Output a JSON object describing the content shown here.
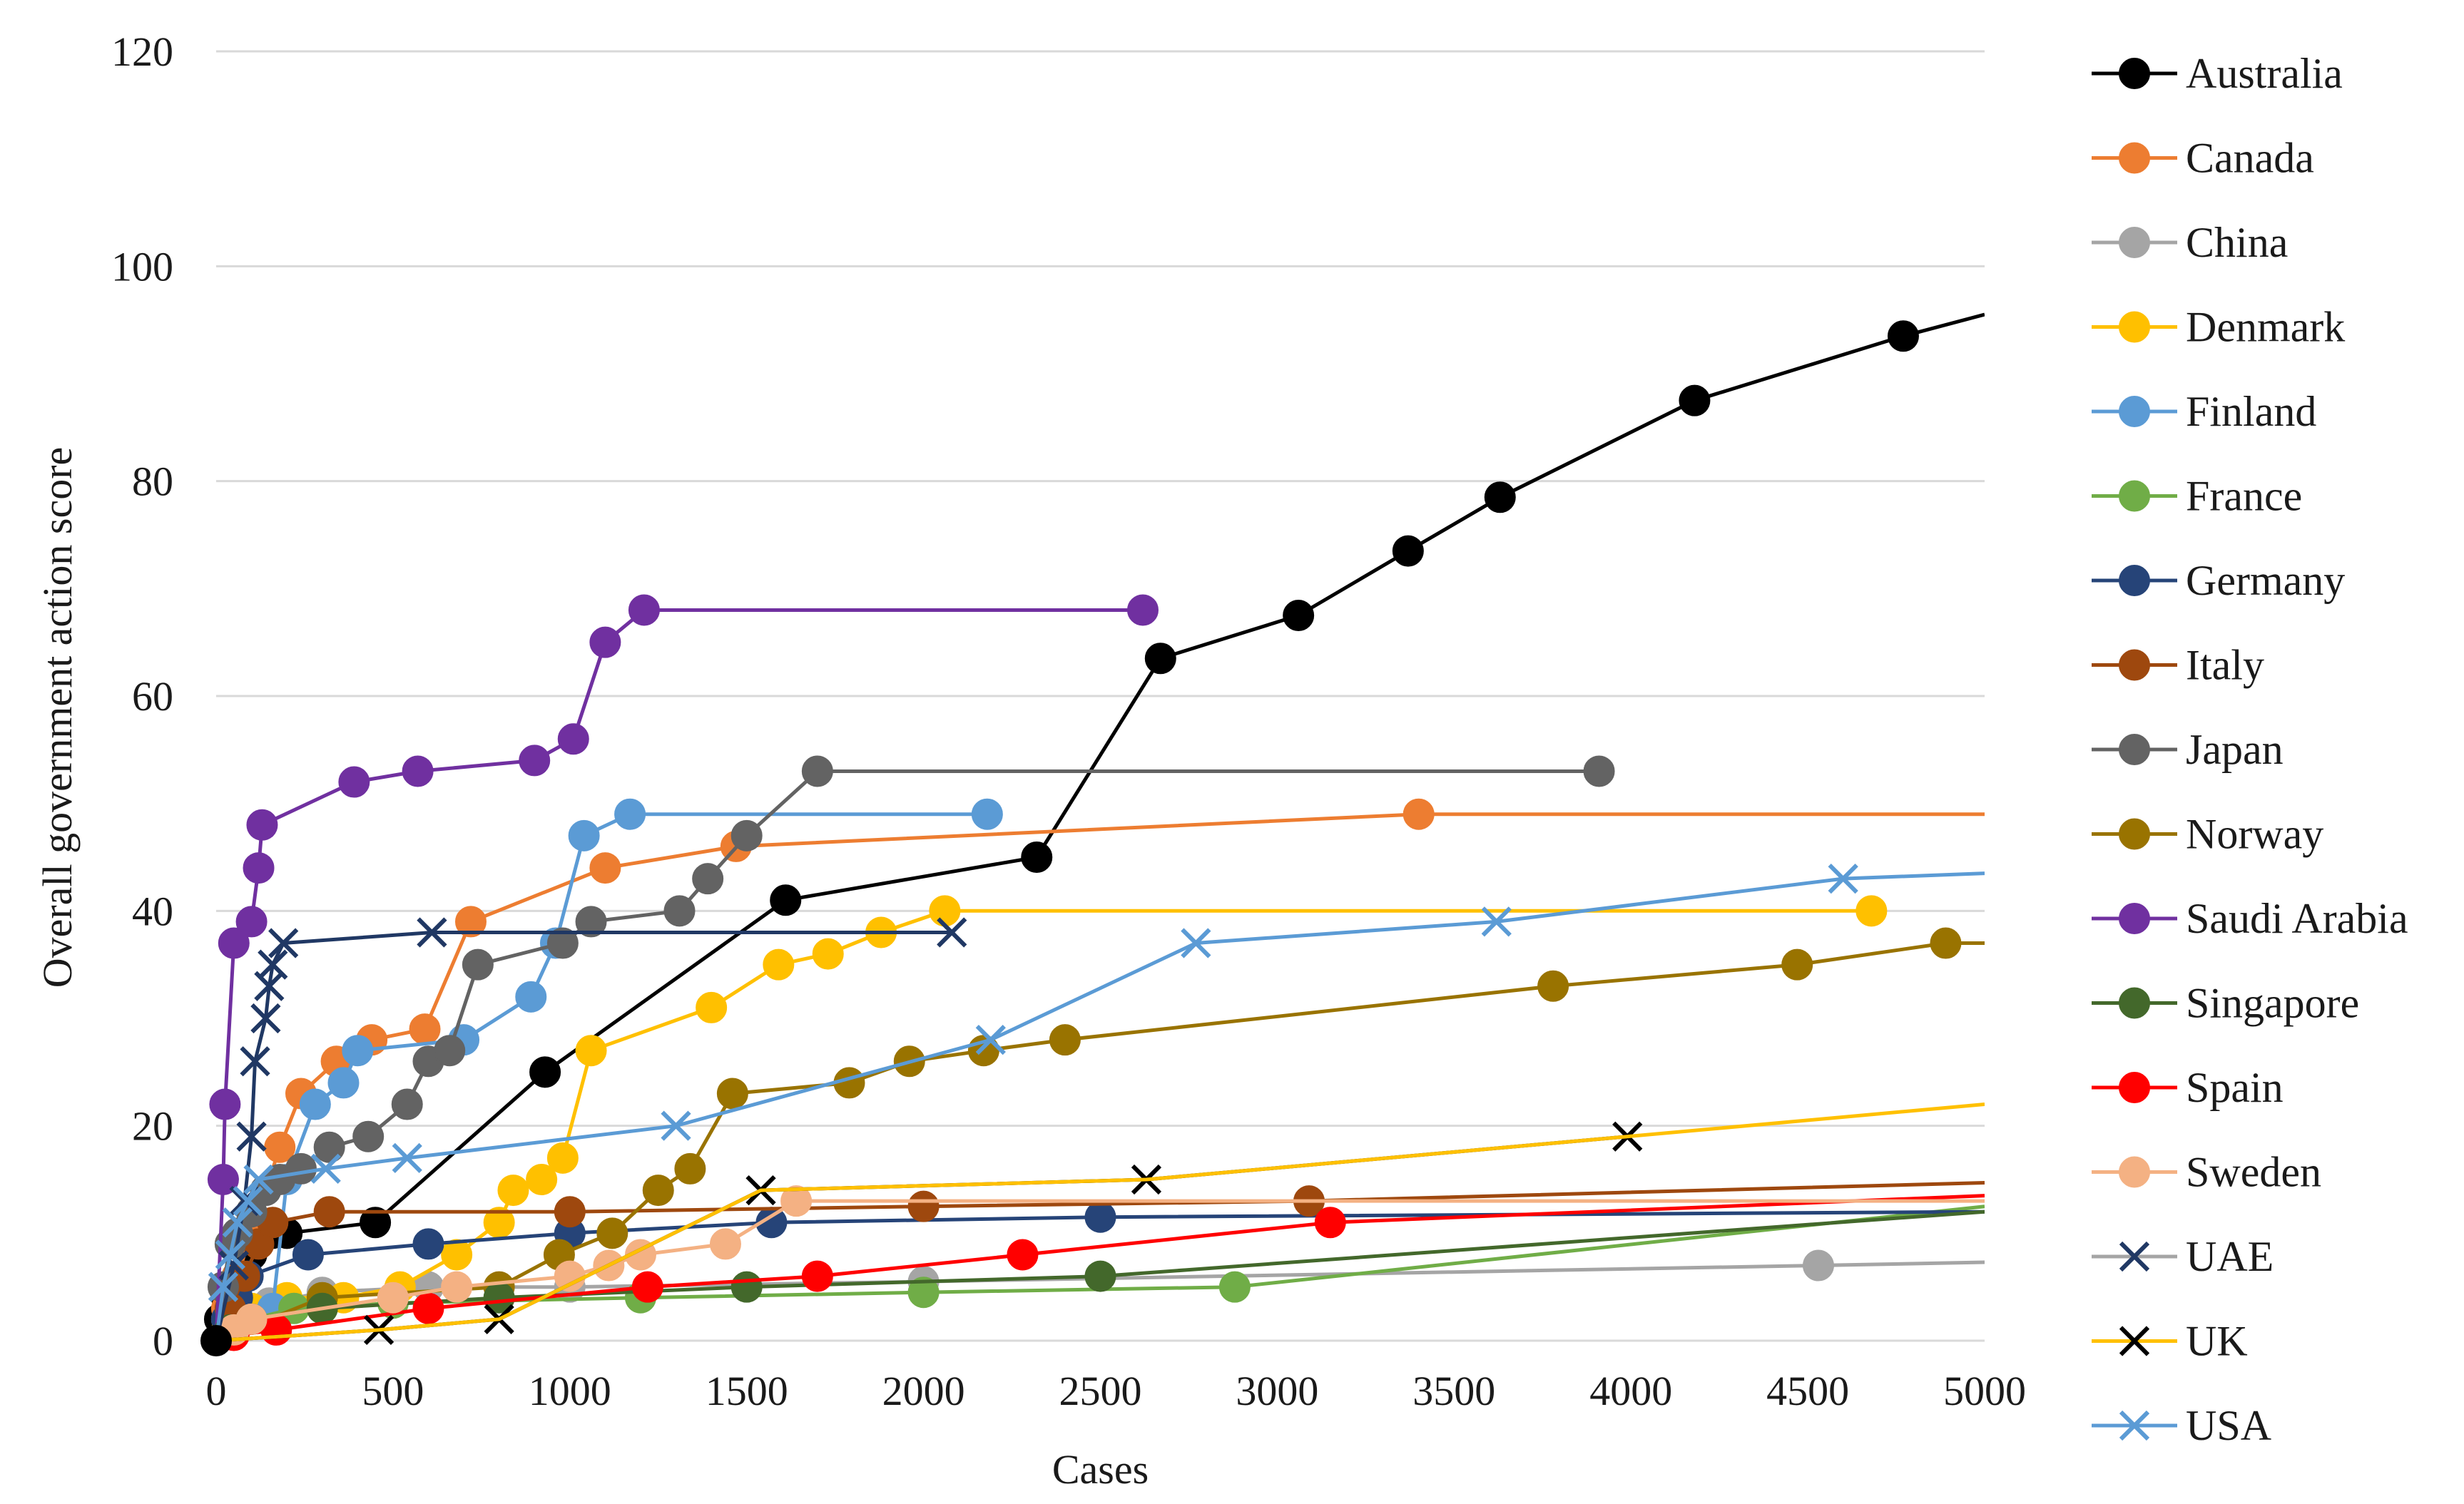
{
  "chart_data": {
    "type": "line",
    "title": "",
    "xlabel": "Cases",
    "ylabel": "Overall government action score",
    "xlim": [
      0,
      5000
    ],
    "ylim": [
      0,
      120
    ],
    "x_ticks": [
      "0",
      "500",
      "1000",
      "1500",
      "2000",
      "2500",
      "3000",
      "3500",
      "4000",
      "4500",
      "5000"
    ],
    "y_ticks": [
      "0",
      "20",
      "40",
      "60",
      "80",
      "100",
      "120"
    ],
    "grid": "horizontal",
    "legend_position": "right",
    "series": [
      {
        "name": "Australia",
        "color": "#000000",
        "marker": "circle",
        "points": [
          [
            0,
            0
          ],
          [
            10,
            2
          ],
          [
            30,
            4
          ],
          [
            60,
            6
          ],
          [
            100,
            8
          ],
          [
            160,
            10
          ],
          [
            200,
            10
          ],
          [
            450,
            11
          ],
          [
            930,
            25
          ],
          [
            1610,
            41
          ],
          [
            2320,
            45
          ],
          [
            2670,
            63.5
          ],
          [
            3060,
            67.5
          ],
          [
            3370,
            73.5
          ],
          [
            3630,
            78.5
          ],
          [
            4180,
            87.5
          ],
          [
            4770,
            93.5
          ],
          [
            5000,
            95.5
          ]
        ]
      },
      {
        "name": "Canada",
        "color": "#ED7D31",
        "marker": "circle",
        "points": [
          [
            0,
            0
          ],
          [
            30,
            3
          ],
          [
            60,
            6
          ],
          [
            100,
            10
          ],
          [
            180,
            18
          ],
          [
            240,
            23
          ],
          [
            340,
            26
          ],
          [
            440,
            28
          ],
          [
            590,
            29
          ],
          [
            720,
            39
          ],
          [
            1100,
            44
          ],
          [
            1470,
            46
          ],
          [
            3400,
            49
          ],
          [
            5000,
            49
          ]
        ]
      },
      {
        "name": "China",
        "color": "#A5A5A5",
        "marker": "circle",
        "points": [
          [
            0,
            0
          ],
          [
            30,
            2
          ],
          [
            80,
            3
          ],
          [
            150,
            3.5
          ],
          [
            300,
            4.5
          ],
          [
            600,
            5
          ],
          [
            1000,
            5
          ],
          [
            2000,
            5.5
          ],
          [
            4530,
            7
          ],
          [
            5000,
            7.3
          ]
        ]
      },
      {
        "name": "Denmark",
        "color": "#FFC000",
        "marker": "circle",
        "points": [
          [
            0,
            0
          ],
          [
            30,
            1
          ],
          [
            100,
            3
          ],
          [
            200,
            4
          ],
          [
            360,
            4
          ],
          [
            520,
            5
          ],
          [
            680,
            8
          ],
          [
            800,
            11
          ],
          [
            840,
            14
          ],
          [
            920,
            15
          ],
          [
            980,
            17
          ],
          [
            1060,
            27
          ],
          [
            1400,
            31
          ],
          [
            1590,
            35
          ],
          [
            1730,
            36
          ],
          [
            1880,
            38
          ],
          [
            2060,
            40
          ],
          [
            4680,
            40
          ]
        ]
      },
      {
        "name": "Finland",
        "color": "#5B9BD5",
        "marker": "circle",
        "points": [
          [
            0,
            0
          ],
          [
            50,
            2
          ],
          [
            100,
            2
          ],
          [
            160,
            3
          ],
          [
            200,
            15
          ],
          [
            280,
            22
          ],
          [
            360,
            24
          ],
          [
            400,
            27
          ],
          [
            700,
            28
          ],
          [
            890,
            32
          ],
          [
            960,
            37
          ],
          [
            1040,
            47
          ],
          [
            1170,
            49
          ],
          [
            2180,
            49
          ]
        ]
      },
      {
        "name": "France",
        "color": "#70AD47",
        "marker": "circle",
        "points": [
          [
            0,
            0
          ],
          [
            50,
            1
          ],
          [
            100,
            2
          ],
          [
            220,
            3
          ],
          [
            500,
            3.5
          ],
          [
            1200,
            4
          ],
          [
            2000,
            4.5
          ],
          [
            2880,
            5
          ],
          [
            5000,
            12.5
          ]
        ]
      },
      {
        "name": "Germany",
        "color": "#264478",
        "marker": "circle",
        "points": [
          [
            0,
            0
          ],
          [
            30,
            2
          ],
          [
            60,
            4
          ],
          [
            90,
            6
          ],
          [
            260,
            8
          ],
          [
            600,
            9
          ],
          [
            1000,
            10
          ],
          [
            1570,
            11
          ],
          [
            2500,
            11.5
          ],
          [
            5000,
            12
          ]
        ]
      },
      {
        "name": "Italy",
        "color": "#9E480E",
        "marker": "circle",
        "points": [
          [
            0,
            0
          ],
          [
            40,
            3
          ],
          [
            80,
            6
          ],
          [
            120,
            9
          ],
          [
            160,
            11
          ],
          [
            320,
            12
          ],
          [
            1000,
            12
          ],
          [
            2000,
            12.5
          ],
          [
            3090,
            13
          ],
          [
            5000,
            14.7
          ]
        ]
      },
      {
        "name": "Japan",
        "color": "#636363",
        "marker": "circle",
        "points": [
          [
            0,
            0
          ],
          [
            20,
            5
          ],
          [
            40,
            9
          ],
          [
            60,
            10
          ],
          [
            100,
            12
          ],
          [
            140,
            14
          ],
          [
            180,
            15
          ],
          [
            240,
            16
          ],
          [
            320,
            18
          ],
          [
            430,
            19
          ],
          [
            540,
            22
          ],
          [
            600,
            26
          ],
          [
            660,
            27
          ],
          [
            740,
            35
          ],
          [
            980,
            37
          ],
          [
            1060,
            39
          ],
          [
            1310,
            40
          ],
          [
            1390,
            43
          ],
          [
            1500,
            47
          ],
          [
            1700,
            53
          ],
          [
            3910,
            53
          ]
        ]
      },
      {
        "name": "Norway",
        "color": "#997300",
        "marker": "circle",
        "points": [
          [
            0,
            0
          ],
          [
            300,
            4
          ],
          [
            800,
            5
          ],
          [
            970,
            8
          ],
          [
            1120,
            10
          ],
          [
            1250,
            14
          ],
          [
            1340,
            16
          ],
          [
            1460,
            23
          ],
          [
            1790,
            24
          ],
          [
            1960,
            26
          ],
          [
            2170,
            27
          ],
          [
            2400,
            28
          ],
          [
            3780,
            33
          ],
          [
            4470,
            35
          ],
          [
            4890,
            37
          ],
          [
            5000,
            37
          ]
        ]
      },
      {
        "name": "Saudi Arabia",
        "color": "#7030A0",
        "marker": "circle",
        "points": [
          [
            0,
            0
          ],
          [
            20,
            15
          ],
          [
            25,
            22
          ],
          [
            50,
            37
          ],
          [
            100,
            39
          ],
          [
            120,
            44
          ],
          [
            130,
            48
          ],
          [
            390,
            52
          ],
          [
            570,
            53
          ],
          [
            900,
            54
          ],
          [
            1010,
            56
          ],
          [
            1100,
            65
          ],
          [
            1210,
            68
          ],
          [
            2620,
            68
          ]
        ]
      },
      {
        "name": "Singapore",
        "color": "#43682B",
        "marker": "circle",
        "points": [
          [
            0,
            0
          ],
          [
            40,
            1
          ],
          [
            100,
            2
          ],
          [
            300,
            3
          ],
          [
            800,
            4
          ],
          [
            1500,
            5
          ],
          [
            2500,
            6
          ],
          [
            5000,
            12
          ]
        ]
      },
      {
        "name": "Spain",
        "color": "#FF0000",
        "marker": "circle",
        "points": [
          [
            0,
            0
          ],
          [
            50,
            0.5
          ],
          [
            170,
            1
          ],
          [
            600,
            3
          ],
          [
            1220,
            5
          ],
          [
            1700,
            6
          ],
          [
            2280,
            8
          ],
          [
            3150,
            11
          ],
          [
            5000,
            13.5
          ]
        ]
      },
      {
        "name": "Sweden",
        "color": "#F4B183",
        "marker": "circle",
        "points": [
          [
            0,
            0
          ],
          [
            50,
            1
          ],
          [
            100,
            2
          ],
          [
            500,
            4
          ],
          [
            680,
            5
          ],
          [
            1000,
            6
          ],
          [
            1110,
            7
          ],
          [
            1200,
            8
          ],
          [
            1440,
            9
          ],
          [
            1640,
            13
          ],
          [
            5000,
            13
          ]
        ]
      },
      {
        "name": "UAE",
        "color": "#203864",
        "marker": "x",
        "points": [
          [
            0,
            0
          ],
          [
            50,
            7
          ],
          [
            80,
            13
          ],
          [
            100,
            19
          ],
          [
            110,
            26
          ],
          [
            140,
            30
          ],
          [
            150,
            33
          ],
          [
            160,
            35
          ],
          [
            190,
            37
          ],
          [
            610,
            38
          ],
          [
            2080,
            38
          ]
        ]
      },
      {
        "name": "UK",
        "color": "#000000",
        "marker": "x",
        "points": [
          [
            0,
            0
          ],
          [
            460,
            1
          ],
          [
            800,
            2
          ],
          [
            1540,
            14
          ],
          [
            2630,
            15
          ],
          [
            3990,
            19
          ]
        ]
      },
      {
        "name": "UK",
        "color": "#FFC000",
        "marker": "none",
        "points": [
          [
            0,
            0
          ],
          [
            460,
            1
          ],
          [
            800,
            2
          ],
          [
            1540,
            14
          ],
          [
            2630,
            15
          ],
          [
            3990,
            19
          ],
          [
            5000,
            22
          ]
        ]
      },
      {
        "name": "USA",
        "color": "#5B9BD5",
        "marker": "x",
        "points": [
          [
            0,
            0
          ],
          [
            20,
            5
          ],
          [
            40,
            8
          ],
          [
            60,
            11
          ],
          [
            90,
            13
          ],
          [
            120,
            15
          ],
          [
            310,
            16
          ],
          [
            540,
            17
          ],
          [
            1300,
            20
          ],
          [
            2190,
            28
          ],
          [
            2770,
            37
          ],
          [
            3620,
            39
          ],
          [
            4600,
            43
          ],
          [
            5000,
            43.5
          ]
        ]
      }
    ],
    "legend": [
      {
        "label": "Australia",
        "color": "#000000",
        "marker": "circle",
        "line": "#000000"
      },
      {
        "label": "Canada",
        "color": "#ED7D31",
        "marker": "circle",
        "line": "#ED7D31"
      },
      {
        "label": "China",
        "color": "#A5A5A5",
        "marker": "circle",
        "line": "#A5A5A5"
      },
      {
        "label": "Denmark",
        "color": "#FFC000",
        "marker": "circle",
        "line": "#FFC000"
      },
      {
        "label": "Finland",
        "color": "#5B9BD5",
        "marker": "circle",
        "line": "#5B9BD5"
      },
      {
        "label": "France",
        "color": "#70AD47",
        "marker": "circle",
        "line": "#70AD47"
      },
      {
        "label": "Germany",
        "color": "#264478",
        "marker": "circle",
        "line": "#264478"
      },
      {
        "label": "Italy",
        "color": "#9E480E",
        "marker": "circle",
        "line": "#9E480E"
      },
      {
        "label": "Japan",
        "color": "#636363",
        "marker": "circle",
        "line": "#636363"
      },
      {
        "label": "Norway",
        "color": "#997300",
        "marker": "circle",
        "line": "#997300"
      },
      {
        "label": "Saudi Arabia",
        "color": "#7030A0",
        "marker": "circle",
        "line": "#7030A0"
      },
      {
        "label": "Singapore",
        "color": "#43682B",
        "marker": "circle",
        "line": "#43682B"
      },
      {
        "label": "Spain",
        "color": "#FF0000",
        "marker": "circle",
        "line": "#FF0000"
      },
      {
        "label": "Sweden",
        "color": "#F4B183",
        "marker": "circle",
        "line": "#F4B183"
      },
      {
        "label": "UAE",
        "color": "#203864",
        "marker": "x",
        "line": "#A5A5A5"
      },
      {
        "label": "UK",
        "color": "#000000",
        "marker": "x",
        "line": "#FFC000"
      },
      {
        "label": "USA",
        "color": "#5B9BD5",
        "marker": "x",
        "line": "#5B9BD5"
      }
    ]
  }
}
